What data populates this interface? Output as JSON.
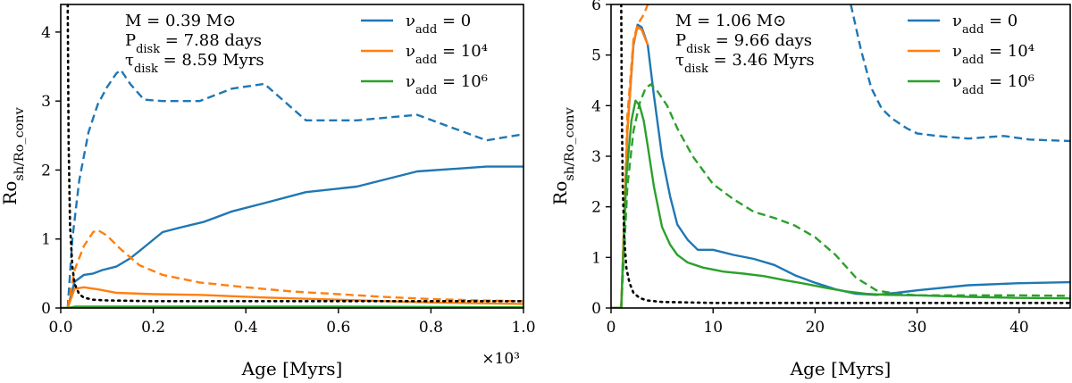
{
  "chart_data": [
    {
      "type": "line",
      "panel": "left",
      "xlabel": "Age [Myrs]",
      "ylabel": "Ro_sh/Ro_conv",
      "x_multiplier_label": "×10³",
      "xlim": [
        0,
        1.0
      ],
      "ylim": [
        0,
        4.4
      ],
      "xticks": [
        0.0,
        0.2,
        0.4,
        0.6,
        0.8,
        1.0
      ],
      "xtick_labels": [
        "0.0",
        "0.2",
        "0.4",
        "0.6",
        "0.8",
        "1.0"
      ],
      "yticks": [
        0,
        1,
        2,
        3,
        4
      ],
      "ytick_labels": [
        "0",
        "1",
        "2",
        "3",
        "4"
      ],
      "annotations": [
        "M = 0.39 M⊙",
        "P_disk = 7.88 days",
        "τ_disk = 8.59 Myrs"
      ],
      "legend_position": "top-right",
      "legend": [
        {
          "label": "ν_add = 0",
          "color": "#1f77b4"
        },
        {
          "label": "ν_add = 10⁴",
          "color": "#ff7f0e"
        },
        {
          "label": "ν_add = 10⁶",
          "color": "#2ca02c"
        }
      ],
      "series": [
        {
          "name": "ν_add = 0 (solid)",
          "color": "#1f77b4",
          "style": "solid",
          "x": [
            0.0,
            0.015,
            0.03,
            0.05,
            0.07,
            0.09,
            0.12,
            0.15,
            0.18,
            0.22,
            0.26,
            0.31,
            0.37,
            0.44,
            0.53,
            0.64,
            0.77,
            0.92,
            1.0
          ],
          "y": [
            0.0,
            0.0,
            0.38,
            0.48,
            0.5,
            0.55,
            0.6,
            0.72,
            0.88,
            1.1,
            1.17,
            1.25,
            1.4,
            1.52,
            1.68,
            1.76,
            1.98,
            2.05,
            2.05
          ]
        },
        {
          "name": "ν_add = 0 (dashed)",
          "color": "#1f77b4",
          "style": "dashed",
          "x": [
            0.015,
            0.025,
            0.04,
            0.06,
            0.08,
            0.1,
            0.12,
            0.13,
            0.15,
            0.18,
            0.22,
            0.3,
            0.37,
            0.44,
            0.53,
            0.64,
            0.77,
            0.92,
            1.0
          ],
          "y": [
            0.0,
            1.0,
            1.85,
            2.55,
            2.95,
            3.2,
            3.4,
            3.45,
            3.25,
            3.02,
            3.0,
            3.0,
            3.18,
            3.25,
            2.72,
            2.72,
            2.8,
            2.43,
            2.52
          ]
        },
        {
          "name": "ν_add = 10⁴ (solid)",
          "color": "#ff7f0e",
          "style": "solid",
          "x": [
            0.0,
            0.015,
            0.03,
            0.05,
            0.08,
            0.12,
            0.2,
            0.3,
            0.45,
            0.6,
            0.8,
            1.0
          ],
          "y": [
            0.0,
            0.0,
            0.28,
            0.3,
            0.27,
            0.22,
            0.2,
            0.19,
            0.15,
            0.12,
            0.08,
            0.06
          ]
        },
        {
          "name": "ν_add = 10⁴ (dashed)",
          "color": "#ff7f0e",
          "style": "dashed",
          "x": [
            0.015,
            0.03,
            0.05,
            0.07,
            0.08,
            0.1,
            0.13,
            0.17,
            0.22,
            0.3,
            0.4,
            0.5,
            0.6,
            0.7,
            0.8,
            0.9,
            1.0
          ],
          "y": [
            0.0,
            0.55,
            0.9,
            1.1,
            1.13,
            1.05,
            0.85,
            0.62,
            0.48,
            0.37,
            0.3,
            0.24,
            0.2,
            0.16,
            0.13,
            0.11,
            0.1
          ]
        },
        {
          "name": "ν_add = 10⁶ (solid)",
          "color": "#2ca02c",
          "style": "solid",
          "x": [
            0.0,
            0.015,
            0.03,
            0.1,
            0.3,
            0.6,
            1.0
          ],
          "y": [
            0.0,
            0.0,
            0.02,
            0.02,
            0.02,
            0.02,
            0.01
          ]
        },
        {
          "name": "ν_add = 10⁶ (dashed)",
          "color": "#2ca02c",
          "style": "dashed",
          "x": [
            0.015,
            0.03,
            0.1,
            0.3,
            0.6,
            1.0
          ],
          "y": [
            0.0,
            0.01,
            0.01,
            0.01,
            0.01,
            0.01
          ]
        },
        {
          "name": "reference (dotted)",
          "color": "#000000",
          "style": "dotted",
          "x": [
            0.015,
            0.017,
            0.02,
            0.025,
            0.03,
            0.04,
            0.05,
            0.07,
            0.1,
            0.2,
            0.5,
            1.0
          ],
          "y": [
            4.4,
            2.4,
            1.2,
            0.6,
            0.35,
            0.2,
            0.15,
            0.12,
            0.11,
            0.1,
            0.1,
            0.1
          ]
        }
      ]
    },
    {
      "type": "line",
      "panel": "right",
      "xlabel": "Age [Myrs]",
      "ylabel": "Ro_sh/Ro_conv",
      "xlim": [
        0,
        45
      ],
      "ylim": [
        0,
        6
      ],
      "xticks": [
        0,
        10,
        20,
        30,
        40
      ],
      "xtick_labels": [
        "0",
        "10",
        "20",
        "30",
        "40"
      ],
      "yticks": [
        0,
        1,
        2,
        3,
        4,
        5,
        6
      ],
      "ytick_labels": [
        "0",
        "1",
        "2",
        "3",
        "4",
        "5",
        "6"
      ],
      "annotations": [
        "M = 1.06 M⊙",
        "P_disk = 9.66 days",
        "τ_disk = 3.46 Myrs"
      ],
      "legend_position": "top-right",
      "legend": [
        {
          "label": "ν_add = 0",
          "color": "#1f77b4"
        },
        {
          "label": "ν_add = 10⁴",
          "color": "#ff7f0e"
        },
        {
          "label": "ν_add = 10⁶",
          "color": "#2ca02c"
        }
      ],
      "series": [
        {
          "name": "ν_add = 0 (solid)",
          "color": "#1f77b4",
          "style": "solid",
          "x": [
            0.0,
            1.0,
            1.6,
            2.2,
            2.6,
            3.0,
            3.6,
            4.2,
            5.0,
            5.8,
            6.5,
            7.5,
            8.5,
            10,
            12,
            14,
            16,
            18,
            20,
            22,
            24,
            26,
            28,
            30,
            35,
            40,
            45
          ],
          "y": [
            0.0,
            0.0,
            3.5,
            5.2,
            5.6,
            5.55,
            5.2,
            4.2,
            3.0,
            2.2,
            1.65,
            1.35,
            1.15,
            1.15,
            1.05,
            0.97,
            0.85,
            0.65,
            0.5,
            0.37,
            0.28,
            0.26,
            0.3,
            0.35,
            0.45,
            0.49,
            0.51
          ]
        },
        {
          "name": "ν_add = 0 (dashed)",
          "color": "#1f77b4",
          "style": "dashed",
          "x": [
            23.5,
            24.5,
            25.5,
            26.5,
            27.5,
            29,
            30,
            32,
            35,
            38.5,
            41,
            45
          ],
          "y": [
            6.0,
            5.1,
            4.35,
            3.95,
            3.75,
            3.55,
            3.45,
            3.4,
            3.35,
            3.4,
            3.33,
            3.3
          ]
        },
        {
          "name": "ν_add = 10⁴ (solid)",
          "color": "#ff7f0e",
          "style": "solid",
          "x": [
            0.0,
            1.0,
            1.6,
            2.2,
            2.6,
            3.0,
            3.6
          ],
          "y": [
            0.0,
            0.0,
            3.5,
            5.25,
            5.55,
            5.5,
            5.2
          ]
        },
        {
          "name": "ν_add = 10⁴ (dashed)",
          "color": "#ff7f0e",
          "style": "dashed",
          "x": [
            1.0,
            1.6,
            2.2,
            2.6,
            2.9,
            3.2,
            3.6
          ],
          "y": [
            0.0,
            3.8,
            5.3,
            5.6,
            5.7,
            5.8,
            6.0
          ]
        },
        {
          "name": "ν_add = 10⁶ (solid)",
          "color": "#2ca02c",
          "style": "solid",
          "x": [
            0.0,
            1.0,
            1.5,
            2.0,
            2.4,
            2.8,
            3.2,
            3.6,
            4.2,
            5.0,
            5.8,
            6.5,
            7.5,
            9,
            11,
            13,
            15,
            17,
            19,
            21,
            23,
            25,
            27,
            30,
            35,
            40,
            45
          ],
          "y": [
            0.0,
            0.0,
            2.6,
            3.7,
            4.1,
            4.0,
            3.7,
            3.2,
            2.4,
            1.6,
            1.25,
            1.05,
            0.9,
            0.8,
            0.72,
            0.68,
            0.63,
            0.55,
            0.48,
            0.4,
            0.33,
            0.28,
            0.26,
            0.25,
            0.22,
            0.2,
            0.19
          ]
        },
        {
          "name": "ν_add = 10⁶ (dashed)",
          "color": "#2ca02c",
          "style": "dashed",
          "x": [
            1.0,
            1.6,
            2.2,
            2.8,
            3.4,
            3.9,
            4.5,
            5.5,
            6.5,
            8,
            10,
            12,
            14,
            16,
            18,
            20,
            22,
            24,
            26,
            28,
            30,
            35,
            40,
            45
          ],
          "y": [
            0.0,
            2.4,
            3.5,
            4.05,
            4.35,
            4.42,
            4.3,
            4.0,
            3.55,
            3.0,
            2.45,
            2.15,
            1.9,
            1.78,
            1.63,
            1.4,
            1.05,
            0.6,
            0.35,
            0.28,
            0.25,
            0.25,
            0.25,
            0.24
          ]
        },
        {
          "name": "reference (dotted)",
          "color": "#000000",
          "style": "dotted",
          "x": [
            1.0,
            1.05,
            1.15,
            1.3,
            1.5,
            1.8,
            2.2,
            2.8,
            3.5,
            5,
            10,
            45
          ],
          "y": [
            6.0,
            4.0,
            2.4,
            1.4,
            0.8,
            0.5,
            0.3,
            0.2,
            0.15,
            0.12,
            0.1,
            0.1
          ]
        }
      ]
    }
  ]
}
